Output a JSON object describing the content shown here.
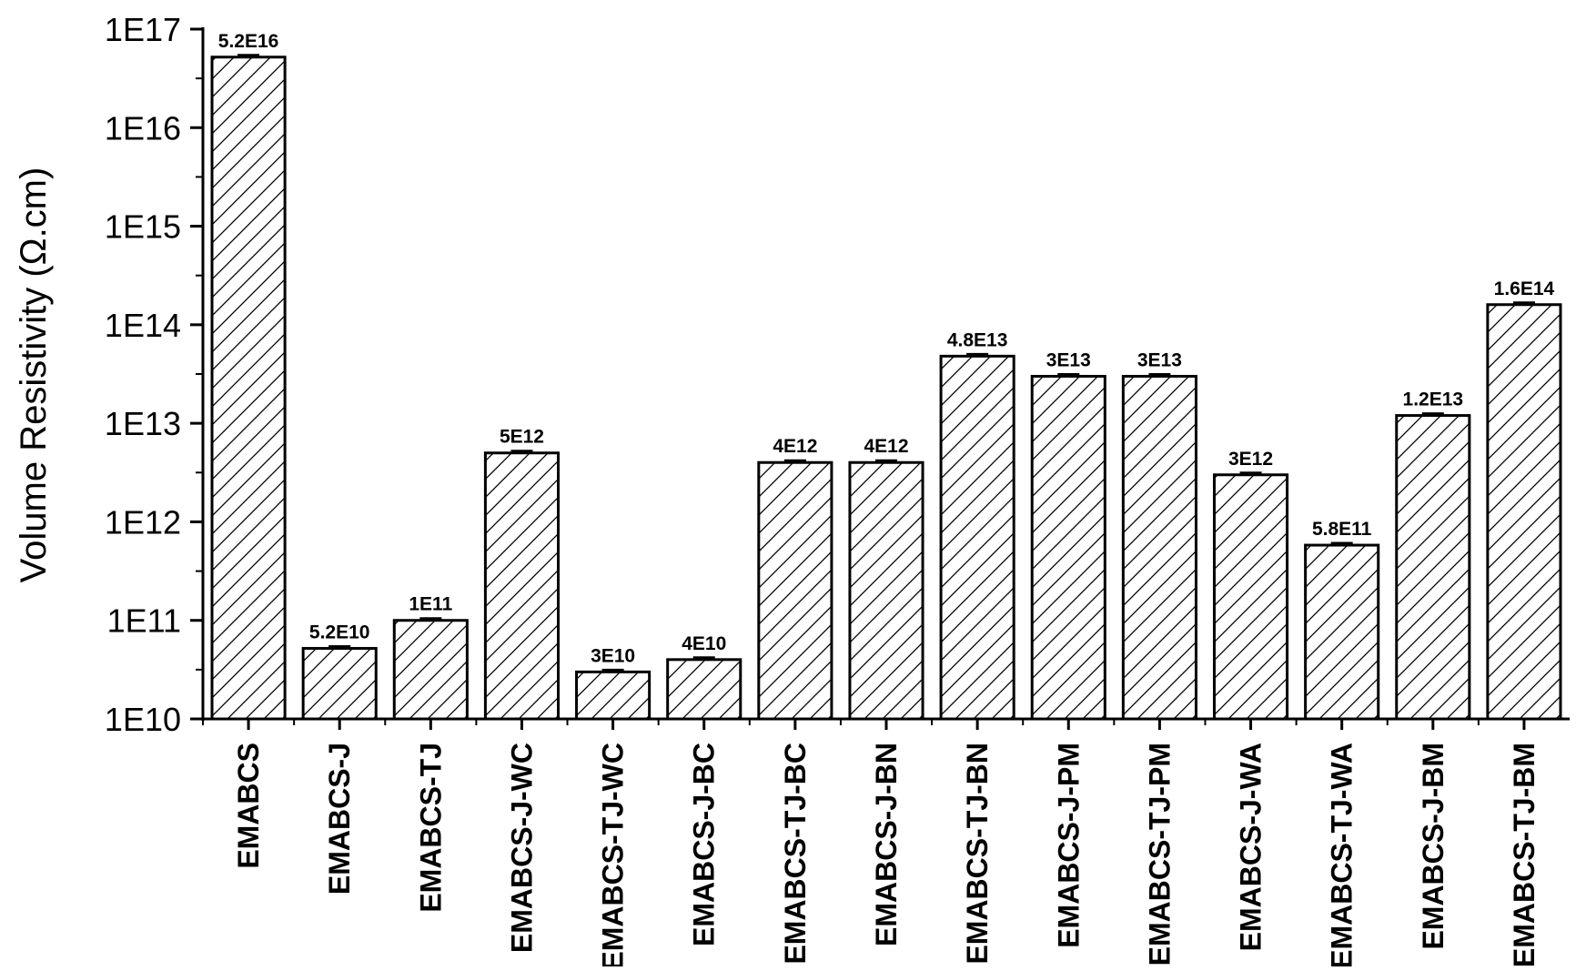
{
  "chart_data": {
    "type": "bar",
    "title": "",
    "xlabel": "",
    "ylabel": "Volume Resistivity (Ω.cm)",
    "yscale": "log",
    "ylim": [
      10000000000.0,
      1e+17
    ],
    "grid": false,
    "legend": "none",
    "bar_fill": "diagonal hatch",
    "error_bars": true,
    "yticks": [
      {
        "value": 10000000000.0,
        "label": "1E10"
      },
      {
        "value": 100000000000.0,
        "label": "1E11"
      },
      {
        "value": 1000000000000.0,
        "label": "1E12"
      },
      {
        "value": 10000000000000.0,
        "label": "1E13"
      },
      {
        "value": 100000000000000.0,
        "label": "1E14"
      },
      {
        "value": 1000000000000000.0,
        "label": "1E15"
      },
      {
        "value": 1e+16,
        "label": "1E16"
      },
      {
        "value": 1e+17,
        "label": "1E17"
      }
    ],
    "categories": [
      "EMABCS",
      "EMABCS-J",
      "EMABCS-TJ",
      "EMABCS-J-WC",
      "EMABCS-TJ-WC",
      "EMABCS-J-BC",
      "EMABCS-TJ-BC",
      "EMABCS-J-BN",
      "EMABCS-TJ-BN",
      "EMABCS-J-PM",
      "EMABCS-TJ-PM",
      "EMABCS-J-WA",
      "EMABCS-TJ-WA",
      "EMABCS-J-BM",
      "EMABCS-TJ-BM"
    ],
    "values": [
      5.2e+16,
      52000000000.0,
      100000000000.0,
      5000000000000.0,
      30000000000.0,
      40000000000.0,
      4000000000000.0,
      4000000000000.0,
      48000000000000.0,
      30000000000000.0,
      30000000000000.0,
      3000000000000.0,
      580000000000.0,
      12000000000000.0,
      160000000000000.0
    ],
    "data_labels": [
      "5.2E16",
      "5.2E10",
      "1E11",
      "5E12",
      "3E10",
      "4E10",
      "4E12",
      "4E12",
      "4.8E13",
      "3E13",
      "3E13",
      "3E12",
      "5.8E11",
      "1.2E13",
      "1.6E14"
    ],
    "colors": {
      "bar_stroke": "#000000",
      "bar_fill": "#ffffff",
      "hatch": "#000000",
      "axis": "#000000"
    }
  }
}
